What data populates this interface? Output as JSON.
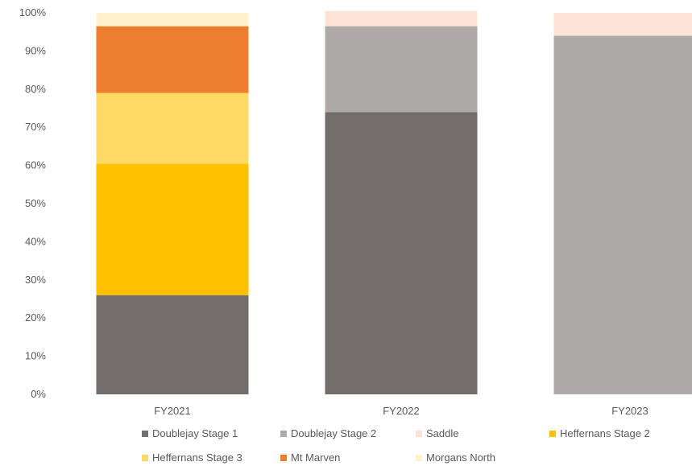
{
  "chart_data": {
    "type": "bar",
    "stacked": true,
    "percent": true,
    "title": "",
    "xlabel": "",
    "ylabel": "",
    "ylim": [
      0,
      100
    ],
    "y_ticks": [
      "0%",
      "10%",
      "20%",
      "30%",
      "40%",
      "50%",
      "60%",
      "70%",
      "80%",
      "90%",
      "100%"
    ],
    "grid": false,
    "legend_position": "bottom",
    "categories": [
      "FY2021",
      "FY2022",
      "FY2023"
    ],
    "series": [
      {
        "name": "Doublejay Stage 1",
        "color": "#736e6c",
        "values": [
          26,
          74,
          0
        ]
      },
      {
        "name": "Doublejay Stage 2",
        "color": "#aeaaa9",
        "values": [
          0,
          22.5,
          94
        ]
      },
      {
        "name": "Saddle",
        "color": "#fbe3d6",
        "values": [
          0,
          4,
          6
        ]
      },
      {
        "name": "Heffernans Stage 2",
        "color": "#ffc000",
        "values": [
          34.5,
          0,
          0
        ]
      },
      {
        "name": "Heffernans Stage 3",
        "color": "#ffd966",
        "values": [
          18.5,
          0,
          0
        ]
      },
      {
        "name": "Mt Marven",
        "color": "#ed7d31",
        "values": [
          17.5,
          0,
          0
        ]
      },
      {
        "name": "Morgans North",
        "color": "#fff2cc",
        "values": [
          3.5,
          0,
          0
        ]
      }
    ]
  }
}
